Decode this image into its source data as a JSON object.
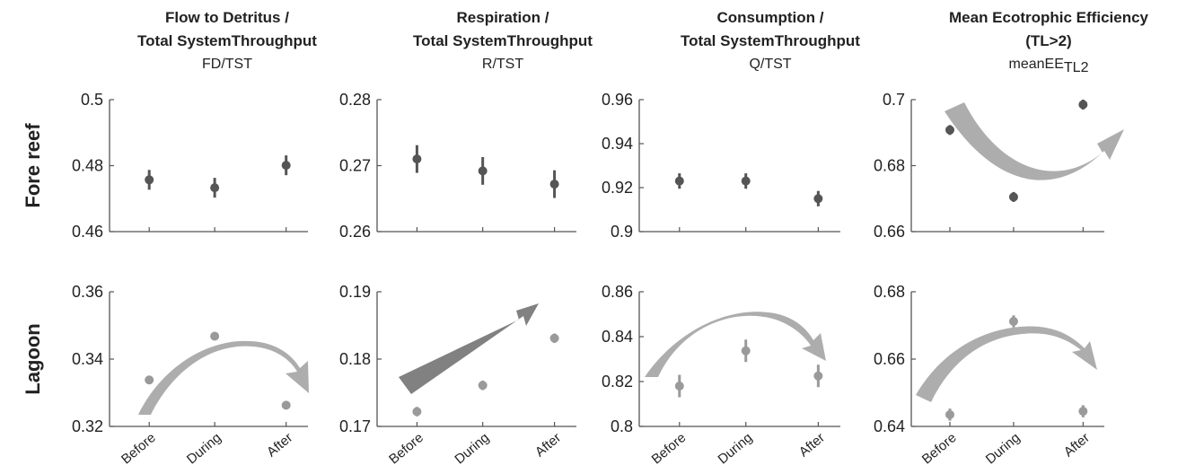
{
  "columns": [
    {
      "title_lines": [
        "Flow to Detritus /",
        "Total SystemThroughput"
      ],
      "subtitle": "FD/TST",
      "subtitle_sub": ""
    },
    {
      "title_lines": [
        "Respiration /",
        "Total SystemThroughput"
      ],
      "subtitle": "R/TST",
      "subtitle_sub": ""
    },
    {
      "title_lines": [
        "Consumption /",
        "Total SystemThroughput"
      ],
      "subtitle": "Q/TST",
      "subtitle_sub": ""
    },
    {
      "title_lines": [
        "Mean Ecotrophic Efficiency",
        "(TL>2)"
      ],
      "subtitle": "meanEE",
      "subtitle_sub": "TL2"
    }
  ],
  "rows": [
    "Fore reef",
    "Lagoon"
  ],
  "colors": {
    "fore_reef_marker": "#555555",
    "lagoon_marker": "#9a9a9a",
    "arrow": "#a9a9a9",
    "arrow_dark": "#7a7a7a",
    "axis": "#555555"
  },
  "chart_data": [
    {
      "type": "scatter",
      "row": "Fore reef",
      "column": "FD/TST",
      "categories": [
        "Before",
        "During",
        "After"
      ],
      "values": [
        0.4757,
        0.4733,
        0.4801
      ],
      "errors": [
        0.003,
        0.003,
        0.003
      ],
      "ylim": [
        0.46,
        0.5
      ],
      "yticks": [
        "0.46",
        "0.48",
        "0.5"
      ],
      "trend_arrow": "none"
    },
    {
      "type": "scatter",
      "row": "Fore reef",
      "column": "R/TST",
      "categories": [
        "Before",
        "During",
        "After"
      ],
      "values": [
        0.271,
        0.2692,
        0.2672
      ],
      "errors": [
        0.0021,
        0.0021,
        0.0021
      ],
      "ylim": [
        0.26,
        0.28
      ],
      "yticks": [
        "0.26",
        "0.27",
        "0.28"
      ],
      "trend_arrow": "none"
    },
    {
      "type": "scatter",
      "row": "Fore reef",
      "column": "Q/TST",
      "categories": [
        "Before",
        "During",
        "After"
      ],
      "values": [
        0.923,
        0.923,
        0.915
      ],
      "errors": [
        0.0035,
        0.0035,
        0.0035
      ],
      "ylim": [
        0.9,
        0.96
      ],
      "yticks": [
        "0.9",
        "0.92",
        "0.94",
        "0.96"
      ],
      "trend_arrow": "none"
    },
    {
      "type": "scatter",
      "row": "Fore reef",
      "column": "meanEE TL2",
      "categories": [
        "Before",
        "During",
        "After"
      ],
      "values": [
        0.6908,
        0.6705,
        0.6985
      ],
      "errors": [
        0.0015,
        0.0015,
        0.0015
      ],
      "ylim": [
        0.66,
        0.7
      ],
      "yticks": [
        "0.66",
        "0.68",
        "0.7"
      ],
      "trend_arrow": "u-shape"
    },
    {
      "type": "scatter",
      "row": "Lagoon",
      "column": "FD/TST",
      "categories": [
        "Before",
        "During",
        "After"
      ],
      "values": [
        0.3338,
        0.3468,
        0.3263
      ],
      "errors": [
        0.001,
        0.001,
        0.001
      ],
      "ylim": [
        0.32,
        0.36
      ],
      "yticks": [
        "0.32",
        "0.34",
        "0.36"
      ],
      "trend_arrow": "hump"
    },
    {
      "type": "scatter",
      "row": "Lagoon",
      "column": "R/TST",
      "categories": [
        "Before",
        "During",
        "After"
      ],
      "values": [
        0.1722,
        0.1761,
        0.1831
      ],
      "errors": [
        0.0007,
        0.0007,
        0.0007
      ],
      "ylim": [
        0.17,
        0.19
      ],
      "yticks": [
        "0.17",
        "0.18",
        "0.19"
      ],
      "trend_arrow": "rising"
    },
    {
      "type": "scatter",
      "row": "Lagoon",
      "column": "Q/TST",
      "categories": [
        "Before",
        "During",
        "After"
      ],
      "values": [
        0.818,
        0.8337,
        0.8225
      ],
      "errors": [
        0.005,
        0.005,
        0.005
      ],
      "ylim": [
        0.8,
        0.86
      ],
      "yticks": [
        "0.8",
        "0.82",
        "0.84",
        "0.86"
      ],
      "trend_arrow": "hump"
    },
    {
      "type": "scatter",
      "row": "Lagoon",
      "column": "meanEE TL2",
      "categories": [
        "Before",
        "During",
        "After"
      ],
      "values": [
        0.6435,
        0.6712,
        0.6445
      ],
      "errors": [
        0.0018,
        0.0018,
        0.0018
      ],
      "ylim": [
        0.64,
        0.68
      ],
      "yticks": [
        "0.64",
        "0.66",
        "0.68"
      ],
      "trend_arrow": "hump"
    }
  ]
}
